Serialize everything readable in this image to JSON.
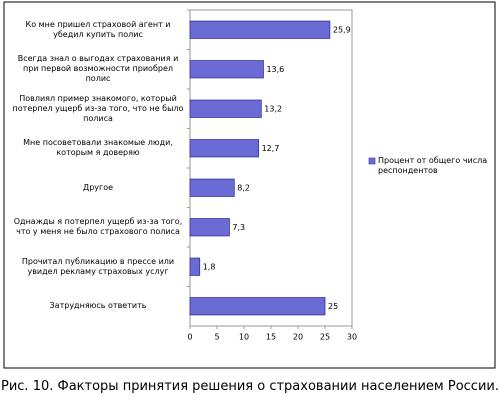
{
  "chart_data": {
    "type": "bar",
    "orientation": "horizontal",
    "caption": "Рис. 10. Факторы принятия решения о страховании населением России.",
    "categories": [
      "Ко мне пришел страховой агент и убедил купить полис",
      "Всегда знал о выгодах страхования и при первой возможности приобрел полис",
      "Повлиял пример знакомого, который потерпел ущерб из-за того, что не было полиса",
      "Мне посоветовали знакомые люди, которым я доверяю",
      "Другое",
      "Однажды я потерпел ущерб из-за того, что у меня не было страхового полиса",
      "Прочитал публикацию в прессе или увидел рекламу страховых услуг",
      "Затрудняюсь ответить"
    ],
    "series": [
      {
        "name": "Процент от общего числа респондентов",
        "color": "#6b6bd6",
        "values": [
          25.9,
          13.6,
          13.2,
          12.7,
          8.2,
          7.3,
          1.8,
          25
        ],
        "value_labels": [
          "25,9",
          "13,6",
          "13,2",
          "12,7",
          "8,2",
          "7,3",
          "1,8",
          "25"
        ]
      }
    ],
    "xlim": [
      0,
      30
    ],
    "xticks": [
      0,
      5,
      10,
      15,
      20,
      25,
      30
    ],
    "legend": "right"
  }
}
